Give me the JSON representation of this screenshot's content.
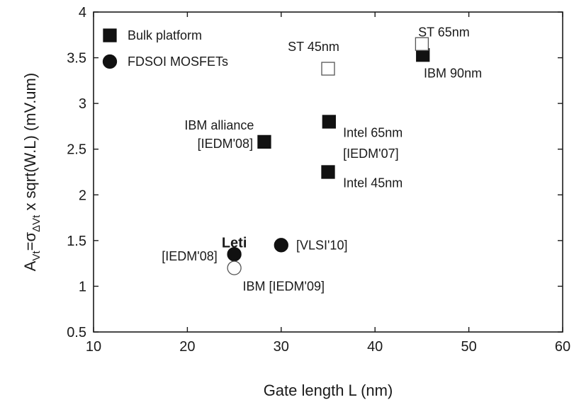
{
  "chart_data": {
    "type": "scatter",
    "xlabel": "Gate length L (nm)",
    "ylabel": {
      "prefix": "A",
      "prefix_sub": "Vt",
      "mid": "=σ",
      "mid_sub": "ΔVt",
      "suffix": " x sqrt(W.L) (mV.um)"
    },
    "xlim": [
      10,
      60
    ],
    "ylim": [
      0.5,
      4
    ],
    "x_ticks": [
      "10",
      "20",
      "30",
      "40",
      "50",
      "60"
    ],
    "y_ticks": [
      "0.5",
      "1",
      "1.5",
      "2",
      "2.5",
      "3",
      "3.5",
      "4"
    ],
    "x_tick_values": [
      10,
      20,
      30,
      40,
      50,
      60
    ],
    "y_tick_values": [
      0.5,
      1,
      1.5,
      2,
      2.5,
      3,
      3.5,
      4
    ],
    "grid": false,
    "legend_position": "top-left",
    "legend": [
      {
        "name": "Bulk platform",
        "marker": "square",
        "filled": true
      },
      {
        "name": "FDSOI MOSFETs",
        "marker": "circle",
        "filled": true
      }
    ],
    "points": [
      {
        "x": 28.2,
        "y": 2.58,
        "marker": "square",
        "filled": true
      },
      {
        "x": 35.1,
        "y": 2.8,
        "marker": "square",
        "filled": true
      },
      {
        "x": 35.0,
        "y": 2.25,
        "marker": "square",
        "filled": true
      },
      {
        "x": 45.1,
        "y": 3.53,
        "marker": "square",
        "filled": true
      },
      {
        "x": 35.0,
        "y": 3.38,
        "marker": "square",
        "filled": false
      },
      {
        "x": 45.0,
        "y": 3.65,
        "marker": "square",
        "filled": false
      },
      {
        "x": 25.0,
        "y": 1.35,
        "marker": "circle",
        "filled": true
      },
      {
        "x": 30.0,
        "y": 1.45,
        "marker": "circle",
        "filled": true
      },
      {
        "x": 25.0,
        "y": 1.2,
        "marker": "circle",
        "filled": false
      }
    ],
    "annotations": [
      {
        "text": "IBM alliance",
        "x": 27.1,
        "y": 2.76,
        "anchor": "end",
        "bold": false
      },
      {
        "text": "[IEDM'08]",
        "x": 27.0,
        "y": 2.56,
        "anchor": "end",
        "bold": false
      },
      {
        "text": "Intel 65nm",
        "x": 36.6,
        "y": 2.68,
        "anchor": "start",
        "bold": false
      },
      {
        "text": "[IEDM'07]",
        "x": 36.6,
        "y": 2.45,
        "anchor": "start",
        "bold": false
      },
      {
        "text": "Intel 45nm",
        "x": 36.6,
        "y": 2.13,
        "anchor": "start",
        "bold": false
      },
      {
        "text": "ST 45nm",
        "x": 36.2,
        "y": 3.62,
        "anchor": "end",
        "bold": false
      },
      {
        "text": "ST 65nm",
        "x": 44.6,
        "y": 3.78,
        "anchor": "start",
        "bold": false
      },
      {
        "text": "IBM 90nm",
        "x": 45.2,
        "y": 3.33,
        "anchor": "start",
        "bold": false
      },
      {
        "text": "Leti",
        "x": 25.0,
        "y": 1.47,
        "anchor": "middle",
        "bold": true
      },
      {
        "text": "[IEDM'08]",
        "x": 23.2,
        "y": 1.33,
        "anchor": "end",
        "bold": false
      },
      {
        "text": "[VLSI'10]",
        "x": 31.6,
        "y": 1.45,
        "anchor": "start",
        "bold": false
      },
      {
        "text": "IBM [IEDM'09]",
        "x": 25.9,
        "y": 1.0,
        "anchor": "start",
        "bold": false
      }
    ]
  }
}
